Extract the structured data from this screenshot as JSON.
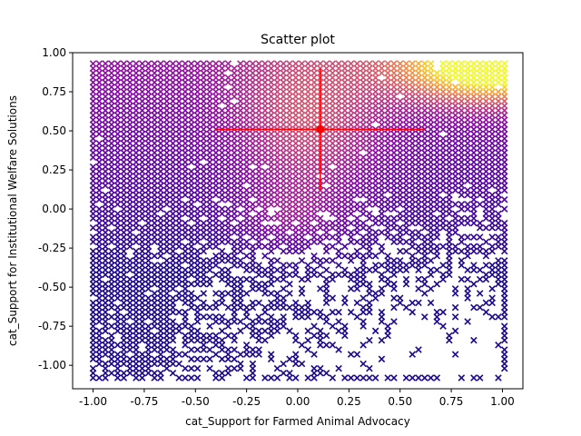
{
  "chart_data": {
    "type": "scatter",
    "title": "Scatter plot",
    "xlabel": "cat_Support for Farmed Animal Advocacy",
    "ylabel": "cat_Support for Institutional Welfare Solutions",
    "xlim": [
      -1.1,
      1.1
    ],
    "ylim": [
      -1.15,
      1.0
    ],
    "x_ticks": [
      "-1.00",
      "-0.75",
      "-0.50",
      "-0.25",
      "0.00",
      "0.25",
      "0.50",
      "0.75",
      "1.00"
    ],
    "y_ticks": [
      "-1.00",
      "-0.75",
      "-0.50",
      "-0.25",
      "0.00",
      "0.25",
      "0.50",
      "0.75",
      "1.00"
    ],
    "grid": false,
    "marker": "x",
    "colormap": "plasma",
    "grid_step": 0.03,
    "x_range": [
      -1.0,
      1.0
    ],
    "y_range": [
      -1.08,
      0.92
    ],
    "colors": {
      "low": "#0d0887",
      "mid": "#9c179e",
      "high": "#f0f921",
      "mean_marker": "#ff0000"
    },
    "mean_point": {
      "x": 0.11,
      "y": 0.51,
      "x_error": [
        0.51,
        0.51
      ],
      "y_error": [
        0.39,
        0.39
      ]
    }
  }
}
